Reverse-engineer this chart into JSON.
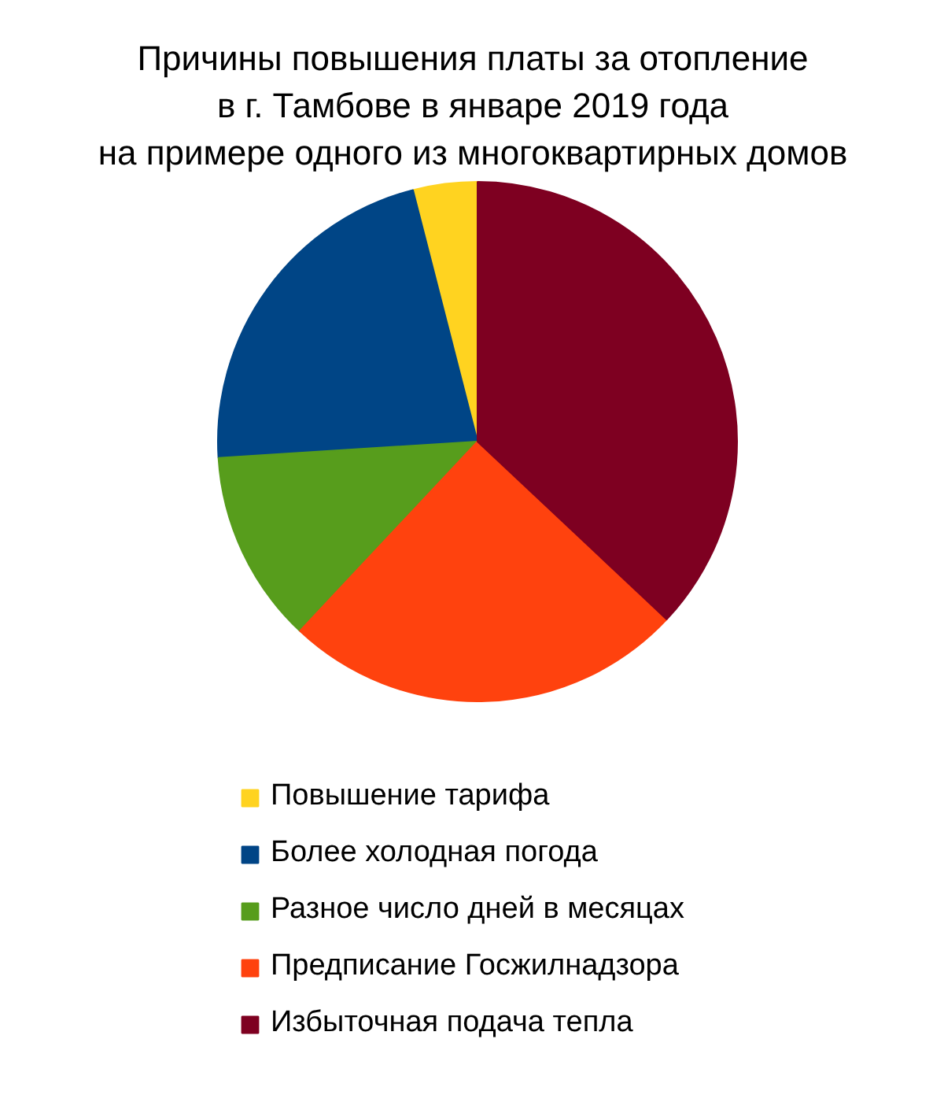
{
  "chart_data": {
    "type": "pie",
    "title": "Причины повышения платы за отопление\nв г. Тамбове в январе 2019 года\nна примере одного из многоквартирных домов",
    "categories": [
      "Повышение тарифа",
      "Более холодная погода",
      "Разное число дней в месяцах",
      "Предписание Госжилнадзора",
      "Избыточная подача тепла"
    ],
    "values": [
      4,
      22,
      12,
      25,
      37
    ],
    "colors": [
      "#ffd320",
      "#004586",
      "#579d1c",
      "#ff420e",
      "#7e0021"
    ],
    "legend": "bottom"
  }
}
